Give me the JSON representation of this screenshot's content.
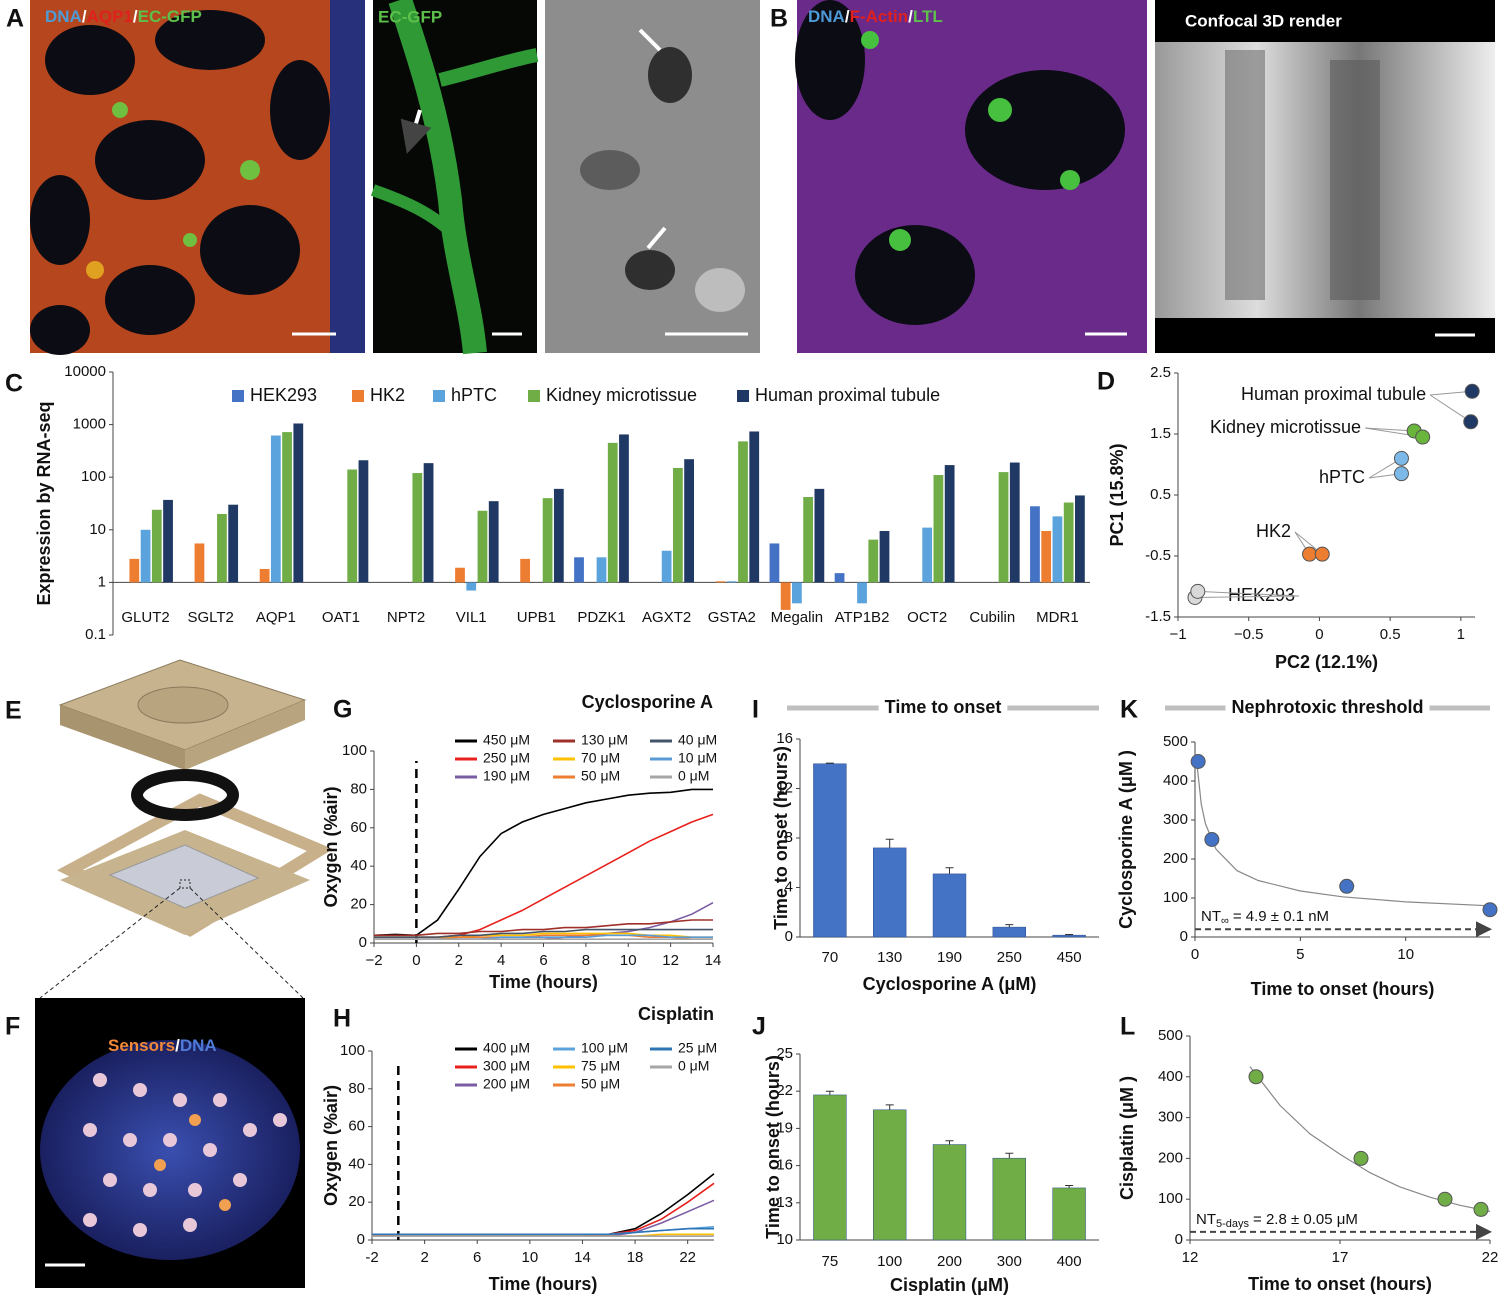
{
  "figure": {
    "panel_a": {
      "letter": "A",
      "image1_label": [
        "DNA",
        "/",
        "AQP1",
        "/",
        "EC-GFP"
      ],
      "image2_label": "EC-GFP"
    },
    "panel_b": {
      "letter": "B",
      "image1_label": [
        "DNA",
        "/",
        "F-Actin",
        "/",
        "LTL"
      ],
      "image2_label": "Confocal 3D render"
    },
    "panel_e": {
      "letter": "E"
    },
    "panel_f": {
      "letter": "F",
      "image_label": [
        "Sensors",
        "/",
        "DNA"
      ]
    }
  },
  "chart_data": [
    {
      "type": "bar",
      "label": "C",
      "y_label": "Expression by RNA-seq",
      "log_y": true,
      "ylim": [
        0.1,
        10000
      ],
      "yticks": [
        0.1,
        1,
        10,
        100,
        1000,
        10000
      ],
      "categories": [
        "GLUT2",
        "SGLT2",
        "AQP1",
        "OAT1",
        "NPT2",
        "VIL1",
        "UPB1",
        "PDZK1",
        "AGXT2",
        "GSTA2",
        "Megalin",
        "ATP1B2",
        "OCT2",
        "Cubilin",
        "MDR1"
      ],
      "series": [
        {
          "name": "HEK293",
          "color": "#4472c4",
          "values": [
            null,
            null,
            null,
            null,
            null,
            null,
            null,
            3,
            null,
            null,
            5.5,
            1.5,
            null,
            null,
            28
          ]
        },
        {
          "name": "HK2",
          "color": "#ed7d31",
          "values": [
            2.8,
            5.5,
            1.8,
            null,
            null,
            1.9,
            2.8,
            null,
            null,
            1.05,
            0.3,
            null,
            null,
            null,
            9.5
          ]
        },
        {
          "name": "hPTC",
          "color": "#5ba3dc",
          "values": [
            10,
            null,
            620,
            null,
            null,
            0.7,
            null,
            3,
            4,
            1.05,
            0.4,
            0.4,
            11,
            null,
            18
          ]
        },
        {
          "name": "Kidney microtissue",
          "color": "#70ad47",
          "values": [
            24,
            20,
            720,
            140,
            120,
            23,
            40,
            450,
            150,
            480,
            42,
            6.5,
            110,
            125,
            33
          ]
        },
        {
          "name": "Human proximal tubule",
          "color": "#1f3864",
          "values": [
            37,
            30,
            1050,
            210,
            185,
            35,
            60,
            650,
            220,
            740,
            60,
            9.5,
            170,
            190,
            45
          ]
        }
      ]
    },
    {
      "type": "scatter",
      "label": "D",
      "x_label": "PC2 (12.1%)",
      "y_label": "PC1 (15.8%)",
      "xlim": [
        -1,
        1.1
      ],
      "xticks": [
        {
          "value": -1,
          "label": "−1"
        },
        {
          "value": -0.5,
          "label": "−0.5"
        },
        0,
        0.5,
        1
      ],
      "ylim": [
        -1.5,
        2.5
      ],
      "yticks": [
        -1.5,
        -0.5,
        0.5,
        1.5,
        2.5
      ],
      "series": [
        {
          "name": "HEK293",
          "color": "#d9d9d9",
          "x": [
            -0.88,
            -0.86
          ],
          "values": [
            -1.18,
            -1.08
          ]
        },
        {
          "name": "HK2",
          "color": "#ed7d31",
          "x": [
            -0.07,
            0.02
          ],
          "values": [
            -0.47,
            -0.47
          ]
        },
        {
          "name": "hPTC",
          "color": "#7cb9e8",
          "x": [
            0.58,
            0.58
          ],
          "values": [
            1.1,
            0.85
          ]
        },
        {
          "name": "Kidney microtissue",
          "color": "#6ab63d",
          "x": [
            0.67,
            0.73
          ],
          "values": [
            1.55,
            1.45
          ]
        },
        {
          "name": "Human proximal tubule",
          "color": "#1f3864",
          "x": [
            1.08,
            1.07
          ],
          "values": [
            2.2,
            1.7
          ]
        }
      ]
    },
    {
      "type": "line",
      "label": "G",
      "title": "Cyclosporine A",
      "x_label": "Time (hours)",
      "y_label": "Oxygen (%air)",
      "xlim": [
        -2,
        14
      ],
      "xticks": [
        {
          "value": -2,
          "label": "−2"
        },
        0,
        2,
        4,
        6,
        8,
        10,
        12,
        14
      ],
      "ylim": [
        0,
        100
      ],
      "yticks": [
        0,
        20,
        40,
        60,
        80,
        100
      ],
      "vline": 0,
      "x": [
        -2,
        -1,
        0,
        1,
        2,
        3,
        4,
        5,
        6,
        7,
        8,
        9,
        10,
        11,
        12,
        13,
        14
      ],
      "series": [
        {
          "name": "450 μM",
          "color": "#000000",
          "values": [
            4,
            4.5,
            4,
            12,
            28,
            45,
            57,
            63,
            67,
            70,
            73,
            75,
            77,
            78,
            78.5,
            80,
            80
          ]
        },
        {
          "name": "250 μM",
          "color": "#e8211d",
          "values": [
            3,
            3,
            3,
            3,
            4,
            7,
            12,
            17,
            23,
            29,
            35,
            41,
            47,
            53,
            58,
            63,
            67
          ]
        },
        {
          "name": "190 μM",
          "color": "#7a5ca3",
          "values": [
            2,
            2,
            2,
            2,
            2,
            2,
            2,
            2,
            2,
            3,
            4,
            5,
            6,
            8,
            11,
            15,
            21
          ]
        },
        {
          "name": "130 μM",
          "color": "#a0302a",
          "values": [
            4,
            4,
            4,
            5,
            5,
            6,
            6,
            7,
            7,
            8,
            8,
            9,
            10,
            10,
            11,
            12,
            12
          ]
        },
        {
          "name": "70 μM",
          "color": "#ffc000",
          "values": [
            3,
            3,
            3,
            3,
            3,
            4,
            4,
            4,
            5,
            5,
            5,
            5,
            5,
            4,
            4,
            3,
            3
          ]
        },
        {
          "name": "50 μM",
          "color": "#ed7d31",
          "values": [
            2,
            2,
            2,
            2,
            3,
            3,
            3,
            3,
            4,
            4,
            4,
            4,
            4,
            3,
            3,
            2,
            2
          ]
        },
        {
          "name": "40 μM",
          "color": "#44546a",
          "values": [
            3,
            3,
            3,
            3,
            4,
            4,
            5,
            5,
            6,
            6,
            7,
            7,
            7,
            7,
            7,
            7,
            7
          ]
        },
        {
          "name": "10 μM",
          "color": "#5b9bd5",
          "values": [
            2,
            2,
            2,
            2,
            2,
            2,
            3,
            3,
            3,
            3,
            3,
            4,
            4,
            4,
            3,
            3,
            3
          ]
        },
        {
          "name": "0 μM",
          "color": "#a6a6a6",
          "values": [
            2,
            2,
            2,
            2,
            2,
            2,
            2,
            2,
            2,
            2,
            2,
            2,
            2,
            2,
            2,
            2,
            2
          ]
        }
      ]
    },
    {
      "type": "line",
      "label": "H",
      "title": "Cisplatin",
      "x_label": "Time (hours)",
      "y_label": "Oxygen (%air)",
      "xlim": [
        -2,
        24
      ],
      "xticks": [
        -2,
        2,
        6,
        10,
        14,
        18,
        22
      ],
      "ylim": [
        0,
        100
      ],
      "yticks": [
        0,
        20,
        40,
        60,
        80,
        100
      ],
      "vline": 0,
      "x": [
        -2,
        0,
        2,
        4,
        6,
        8,
        10,
        12,
        14,
        16,
        18,
        20,
        22,
        24
      ],
      "series": [
        {
          "name": "400 μM",
          "color": "#000000",
          "values": [
            3,
            2,
            2,
            2,
            2,
            2,
            2,
            2,
            2,
            3,
            6,
            14,
            24,
            35
          ]
        },
        {
          "name": "300 μM",
          "color": "#e8211d",
          "values": [
            3,
            2,
            2,
            2,
            2,
            2,
            2,
            2,
            2,
            3,
            5,
            11,
            20,
            30
          ]
        },
        {
          "name": "200 μM",
          "color": "#7a5ca3",
          "values": [
            2,
            2,
            2,
            2,
            2,
            2,
            2,
            2,
            2,
            2,
            4,
            9,
            15,
            21
          ]
        },
        {
          "name": "100 μM",
          "color": "#5ba3dc",
          "values": [
            3,
            3,
            2,
            2,
            2,
            3,
            3,
            3,
            3,
            3,
            4,
            5,
            6,
            7
          ]
        },
        {
          "name": "75 μM",
          "color": "#ffc000",
          "values": [
            2,
            2,
            2,
            2,
            2,
            2,
            2,
            2,
            2,
            2,
            2,
            3,
            3,
            3
          ]
        },
        {
          "name": "50 μM",
          "color": "#ed7d31",
          "values": [
            2,
            2,
            2,
            2,
            2,
            2,
            2,
            2,
            2,
            2,
            2,
            2,
            2,
            2
          ]
        },
        {
          "name": "25 μM",
          "color": "#2e75b6",
          "values": [
            3,
            3,
            3,
            3,
            3,
            3,
            3,
            3,
            3,
            3,
            4,
            5,
            6,
            6
          ]
        },
        {
          "name": "0 μM",
          "color": "#a6a6a6",
          "values": [
            2,
            2,
            2,
            2,
            2,
            2,
            2,
            2,
            2,
            2,
            2,
            2,
            2,
            2
          ]
        }
      ]
    },
    {
      "type": "bar",
      "label": "I",
      "title": "Time to onset",
      "x_label": "Cyclosporine A (μM)",
      "y_label": "Time to onset (hours)",
      "categories": [
        "70",
        "130",
        "190",
        "250",
        "450"
      ],
      "values": [
        14,
        7.2,
        5.1,
        0.8,
        0.15
      ],
      "errors": [
        0.05,
        0.7,
        0.5,
        0.2,
        0.05
      ],
      "color": "#4472c4",
      "ylim": [
        0,
        16
      ],
      "yticks": [
        0,
        4,
        8,
        12,
        16
      ]
    },
    {
      "type": "bar",
      "label": "J",
      "x_label": "Cisplatin (μM)",
      "y_label": "Time to onset (hours)",
      "categories": [
        "75",
        "100",
        "200",
        "300",
        "400"
      ],
      "values": [
        21.7,
        20.5,
        17.7,
        16.6,
        14.2
      ],
      "errors": [
        0.3,
        0.4,
        0.3,
        0.4,
        0.2
      ],
      "color": "#70ad47",
      "ylim": [
        10,
        25
      ],
      "yticks": [
        10,
        13,
        16,
        19,
        22,
        25
      ]
    },
    {
      "type": "fit",
      "label": "K",
      "title": "Nephrotoxic threshold",
      "x_label": "Time to onset (hours)",
      "y_label": "Cyclosporine A (μM )",
      "xlim": [
        0,
        14
      ],
      "xticks": [
        0,
        5,
        10
      ],
      "ylim": [
        0,
        500
      ],
      "yticks": [
        0,
        100,
        200,
        300,
        400,
        500
      ],
      "x": [
        0.15,
        0.8,
        7.2,
        14
      ],
      "values": [
        450,
        250,
        130,
        70
      ],
      "color": "#4472c4",
      "fit": {
        "x": [
          0.1,
          0.3,
          0.5,
          1,
          2,
          3,
          5,
          7,
          10,
          14
        ],
        "values": [
          440,
          340,
          290,
          225,
          170,
          145,
          118,
          103,
          90,
          80
        ]
      },
      "threshold": 20,
      "annotation": {
        "base": "NT",
        "sub": "∞",
        "rest": "= 4.9 ± 0.1 nM"
      }
    },
    {
      "type": "fit",
      "label": "L",
      "x_label": "Time to onset (hours)",
      "y_label": "Cisplatin (μM )",
      "xlim": [
        12,
        22
      ],
      "xticks": [
        12,
        17,
        22
      ],
      "ylim": [
        0,
        500
      ],
      "yticks": [
        0,
        100,
        200,
        300,
        400,
        500
      ],
      "x": [
        14.2,
        17.7,
        20.5,
        21.7
      ],
      "values": [
        400,
        200,
        100,
        75
      ],
      "color": "#70ad47",
      "fit": {
        "x": [
          14,
          15,
          16,
          17,
          18,
          19,
          20,
          21,
          22
        ],
        "values": [
          425,
          330,
          260,
          210,
          165,
          130,
          105,
          85,
          70
        ]
      },
      "threshold": 20,
      "annotation": {
        "base": "NT",
        "sub": "5-days",
        "rest": "= 2.8 ± 0.05 μM"
      }
    }
  ]
}
